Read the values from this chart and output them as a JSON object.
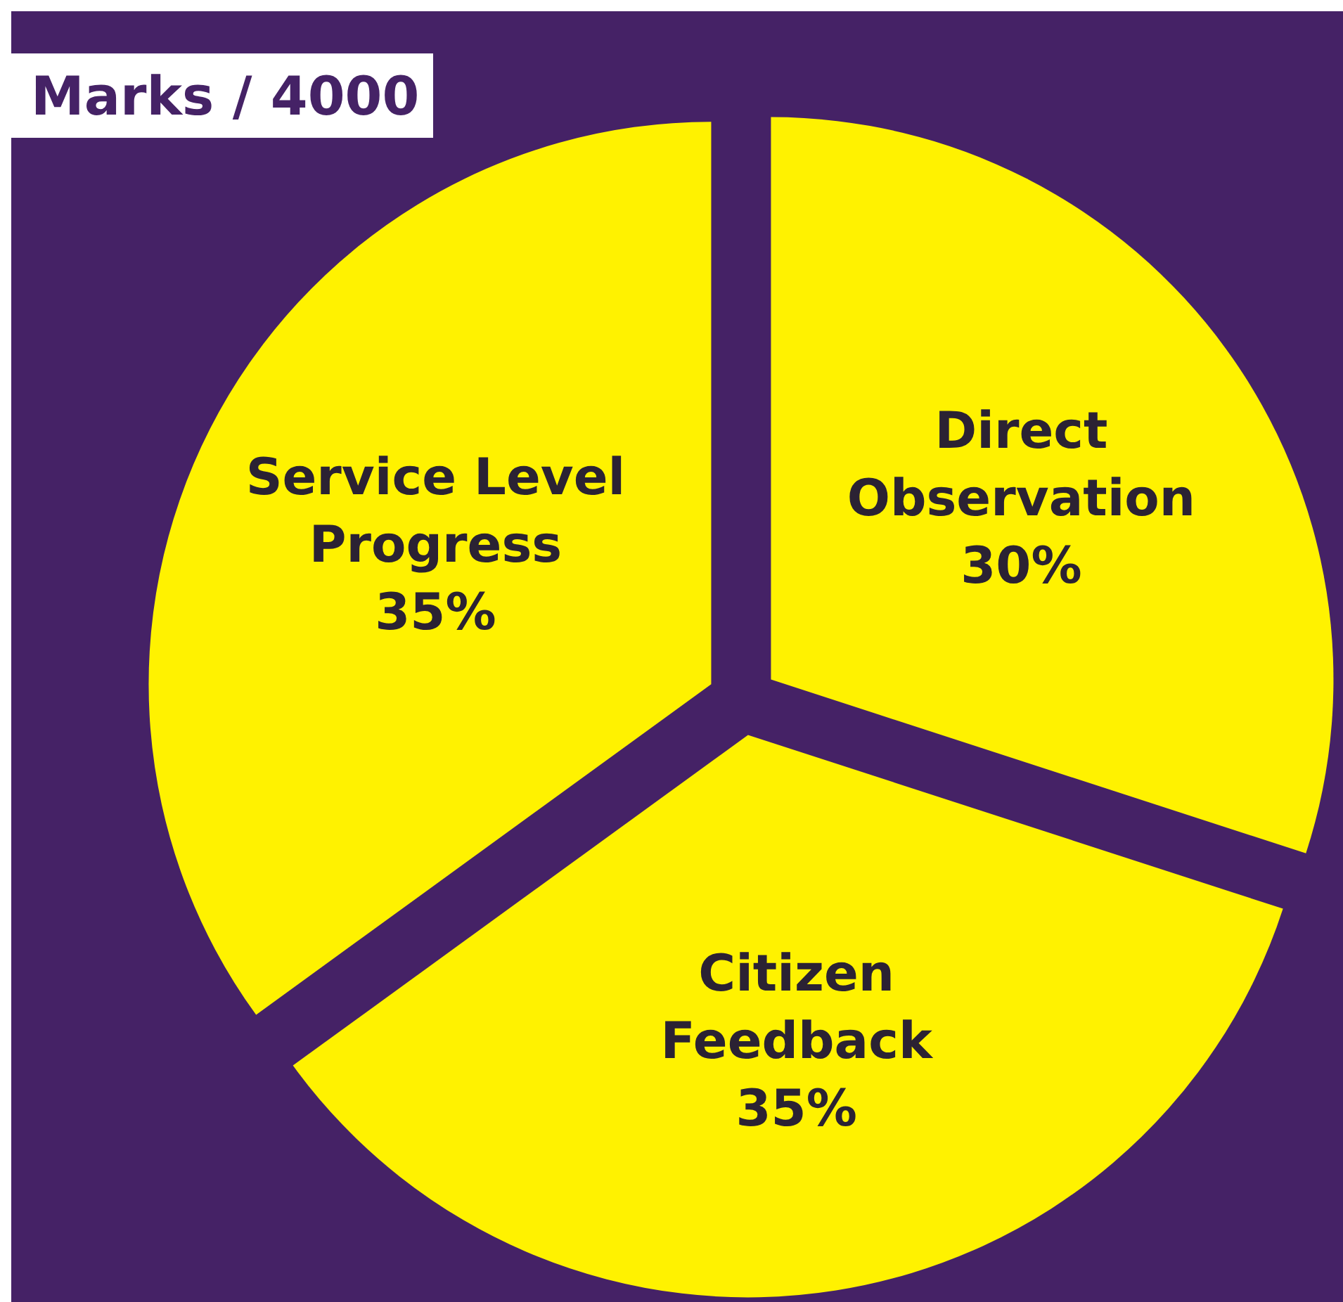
{
  "chart_data": {
    "type": "pie",
    "title": "Marks / 4000",
    "categories": [
      "Direct Observation",
      "Citizen Feedback",
      "Service Level Progress"
    ],
    "values": [
      30,
      35,
      35
    ],
    "colors": [
      "#fff200",
      "#fff200",
      "#fff200"
    ],
    "value_labels": [
      "30%",
      "35%",
      "35%"
    ]
  }
}
